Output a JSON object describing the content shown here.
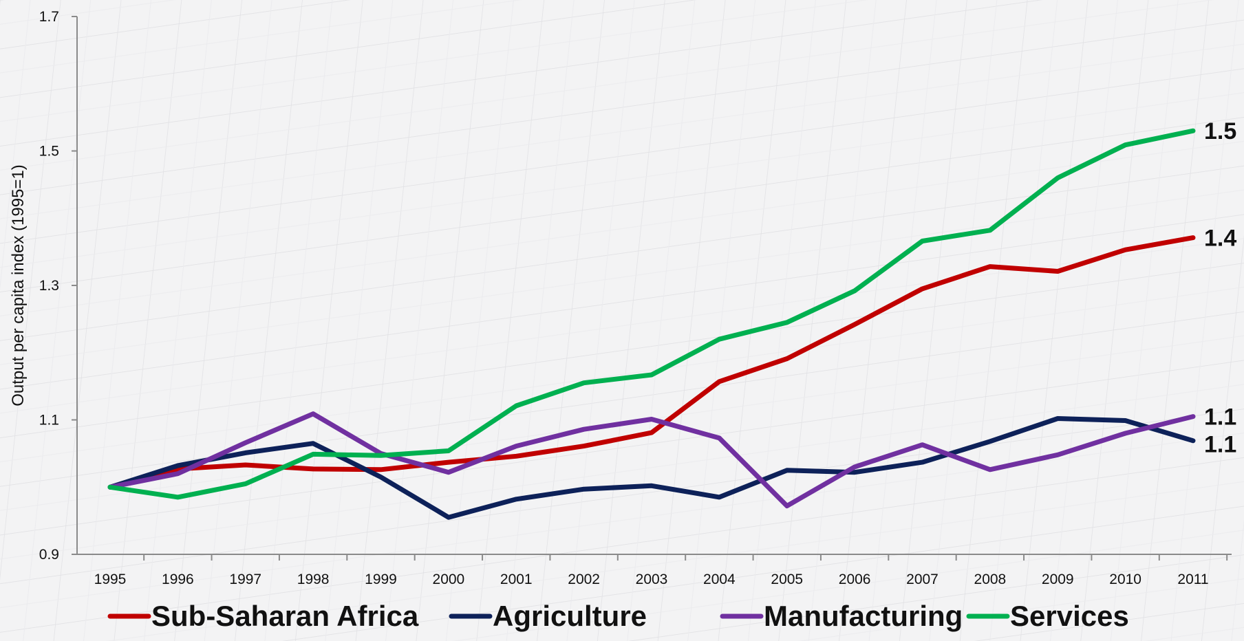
{
  "chart_data": {
    "type": "line",
    "ylabel": "Output per capita index (1995=1)",
    "xlabel": "",
    "title": "",
    "x": [
      "1995",
      "1996",
      "1997",
      "1998",
      "1999",
      "2000",
      "2001",
      "2002",
      "2003",
      "2004",
      "2005",
      "2006",
      "2007",
      "2008",
      "2009",
      "2010",
      "2011"
    ],
    "ylim": [
      0.9,
      1.7
    ],
    "yticks": [
      "0.9",
      "1.1",
      "1.3",
      "1.5",
      "1.7"
    ],
    "legend_position": "bottom",
    "grid": false,
    "series": [
      {
        "name": "Sub-Saharan Africa",
        "color": "#c00000",
        "values": [
          1.0,
          1.027,
          1.033,
          1.027,
          1.026,
          1.037,
          1.046,
          1.061,
          1.081,
          1.157,
          1.191,
          1.242,
          1.295,
          1.328,
          1.321,
          1.353,
          1.371
        ],
        "end_label": "1.4"
      },
      {
        "name": "Agriculture",
        "color": "#0d2159",
        "values": [
          1.0,
          1.032,
          1.051,
          1.065,
          1.015,
          0.955,
          0.982,
          0.997,
          1.002,
          0.985,
          1.025,
          1.022,
          1.037,
          1.068,
          1.102,
          1.099,
          1.069
        ],
        "end_label": "1.1"
      },
      {
        "name": "Manufacturing",
        "color": "#7030a0",
        "values": [
          1.0,
          1.02,
          1.066,
          1.109,
          1.05,
          1.022,
          1.061,
          1.086,
          1.101,
          1.073,
          0.972,
          1.03,
          1.063,
          1.026,
          1.048,
          1.08,
          1.105
        ],
        "end_label": "1.1"
      },
      {
        "name": "Services",
        "color": "#00b050",
        "values": [
          1.0,
          0.985,
          1.005,
          1.049,
          1.047,
          1.054,
          1.121,
          1.155,
          1.167,
          1.22,
          1.245,
          1.292,
          1.366,
          1.382,
          1.46,
          1.509,
          1.53
        ],
        "end_label": "1.5"
      }
    ]
  }
}
